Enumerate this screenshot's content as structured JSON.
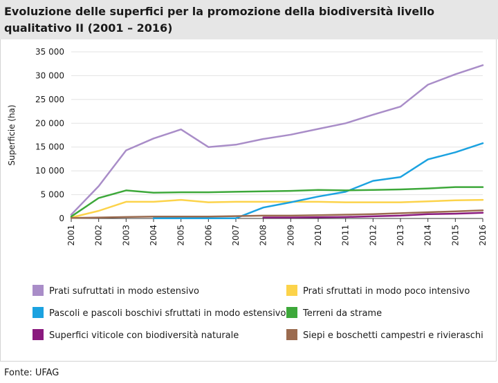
{
  "title": "Evoluzione delle superfici per la promozione della biodiversità livello qualitativo II (2001 – 2016)",
  "source": "Fonte: UFAG",
  "chart_data": {
    "type": "line",
    "ylabel": "Superficie (ha)",
    "ylim": [
      0,
      35000
    ],
    "yticks": [
      0,
      5000,
      10000,
      15000,
      20000,
      25000,
      30000,
      35000
    ],
    "ytick_labels": [
      "0",
      "5 000",
      "10 000",
      "15 000",
      "20 000",
      "25 000",
      "30 000",
      "35 000"
    ],
    "grid": true,
    "legend_position": "bottom",
    "x": [
      "2001",
      "2002",
      "2003",
      "2004",
      "2005",
      "2006",
      "2007",
      "2008",
      "2009",
      "2010",
      "2011",
      "2012",
      "2013",
      "2014",
      "2015",
      "2016"
    ],
    "series": [
      {
        "name": "Prati sufruttati in modo estensivo",
        "color": "#a98dc8",
        "values": [
          800,
          6800,
          14300,
          16800,
          18700,
          15000,
          15500,
          16700,
          17600,
          18800,
          20000,
          21800,
          23500,
          28100,
          30300,
          32200
        ]
      },
      {
        "name": "Prati sfruttati in modo poco intensivo",
        "color": "#fcd34a",
        "values": [
          200,
          1600,
          3500,
          3500,
          3900,
          3400,
          3500,
          3500,
          3500,
          3500,
          3400,
          3400,
          3400,
          3600,
          3800,
          3900
        ]
      },
      {
        "name": "Pascoli e pascoli boschivi sfruttati in modo estensivo",
        "color": "#1ba2e0",
        "values": [
          null,
          null,
          null,
          50,
          50,
          50,
          50,
          2300,
          3400,
          4600,
          5600,
          7900,
          8700,
          12400,
          13900,
          15800
        ]
      },
      {
        "name": "Terreni da strame",
        "color": "#3da83a",
        "values": [
          400,
          4300,
          5900,
          5400,
          5500,
          5500,
          5600,
          5700,
          5800,
          6000,
          5900,
          6000,
          6100,
          6300,
          6600,
          6600
        ]
      },
      {
        "name": "Superfici viticole con biodiversità naturale",
        "color": "#8a1a7e",
        "values": [
          null,
          null,
          null,
          null,
          null,
          null,
          null,
          200,
          200,
          250,
          300,
          450,
          600,
          900,
          1000,
          1200
        ]
      },
      {
        "name": "Siepi e boschetti campestri e rivieraschi",
        "color": "#9b6b4f",
        "values": [
          100,
          200,
          300,
          400,
          400,
          400,
          500,
          600,
          600,
          700,
          800,
          900,
          1100,
          1300,
          1500,
          1700
        ]
      }
    ]
  }
}
